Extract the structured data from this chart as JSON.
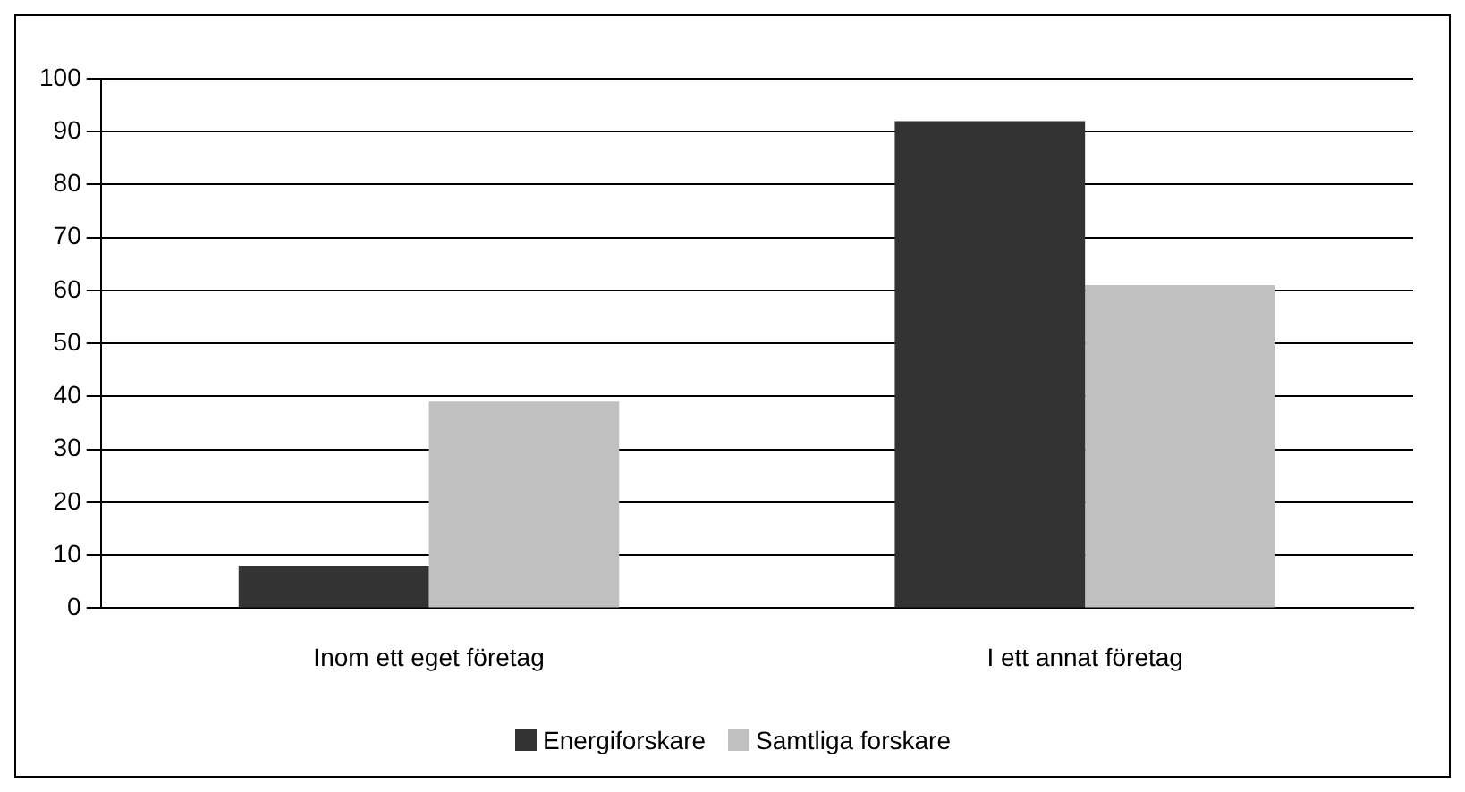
{
  "chart_data": {
    "type": "bar",
    "categories": [
      "Inom ett eget företag",
      "I ett annat företag"
    ],
    "series": [
      {
        "name": "Energiforskare",
        "color": "#333333",
        "values": [
          8,
          92
        ]
      },
      {
        "name": "Samtliga forskare",
        "color": "#c0c0c0",
        "values": [
          39,
          61
        ]
      }
    ],
    "ylim": [
      0,
      100
    ],
    "yticks": [
      0,
      10,
      20,
      30,
      40,
      50,
      60,
      70,
      80,
      90,
      100
    ],
    "grid": "y",
    "legend": "bottom"
  }
}
